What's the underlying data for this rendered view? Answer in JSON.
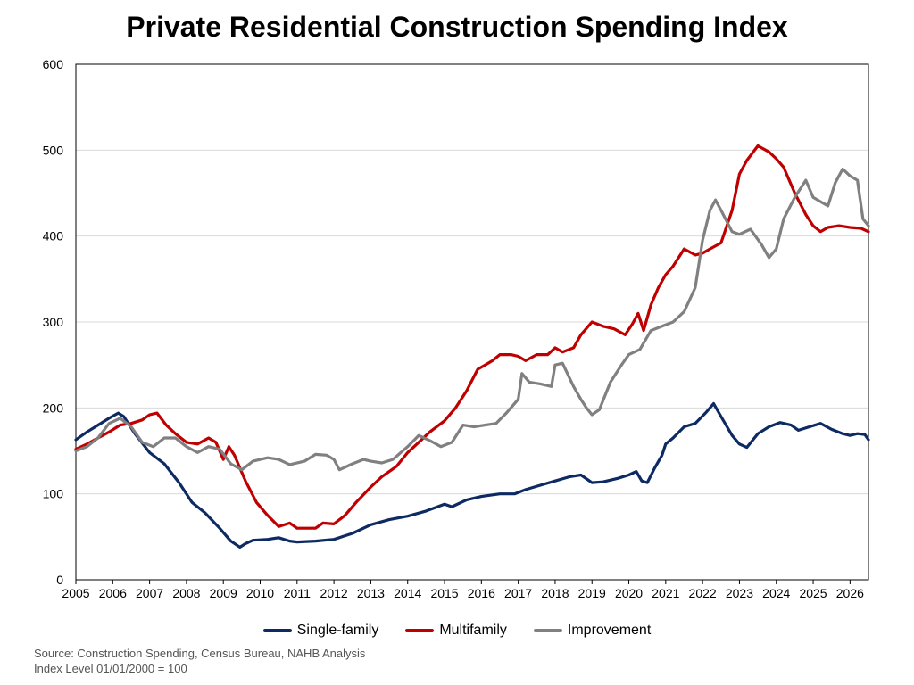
{
  "chart_data": {
    "type": "line",
    "title": "Private Residential Construction Spending Index",
    "xlabel": "",
    "ylabel": "",
    "xlim": [
      2005,
      2026.5
    ],
    "ylim": [
      0,
      600
    ],
    "yticks": [
      0,
      100,
      200,
      300,
      400,
      500,
      600
    ],
    "xticks": [
      "2005",
      "2006",
      "2007",
      "2008",
      "2009",
      "2010",
      "2011",
      "2012",
      "2013",
      "2014",
      "2015",
      "2016",
      "2017",
      "2018",
      "2019",
      "2020",
      "2021",
      "2022",
      "2023",
      "2024",
      "2025",
      "2026"
    ],
    "grid": "horizontal",
    "legend_position": "bottom",
    "series": [
      {
        "name": "Single-family",
        "color": "#0d2a63",
        "points": [
          [
            2005.0,
            163
          ],
          [
            2005.3,
            172
          ],
          [
            2005.6,
            180
          ],
          [
            2005.9,
            188
          ],
          [
            2006.15,
            194
          ],
          [
            2006.3,
            190
          ],
          [
            2006.6,
            170
          ],
          [
            2007.0,
            148
          ],
          [
            2007.4,
            135
          ],
          [
            2007.8,
            113
          ],
          [
            2008.15,
            90
          ],
          [
            2008.5,
            78
          ],
          [
            2008.9,
            60
          ],
          [
            2009.2,
            45
          ],
          [
            2009.45,
            38
          ],
          [
            2009.6,
            42
          ],
          [
            2009.8,
            46
          ],
          [
            2010.2,
            47
          ],
          [
            2010.5,
            49
          ],
          [
            2010.8,
            45
          ],
          [
            2011.0,
            44
          ],
          [
            2011.5,
            45
          ],
          [
            2012.0,
            47
          ],
          [
            2012.5,
            54
          ],
          [
            2013.0,
            64
          ],
          [
            2013.5,
            70
          ],
          [
            2014.0,
            74
          ],
          [
            2014.5,
            80
          ],
          [
            2015.0,
            88
          ],
          [
            2015.2,
            85
          ],
          [
            2015.6,
            93
          ],
          [
            2016.0,
            97
          ],
          [
            2016.5,
            100
          ],
          [
            2016.9,
            100
          ],
          [
            2017.2,
            105
          ],
          [
            2017.6,
            110
          ],
          [
            2018.0,
            115
          ],
          [
            2018.4,
            120
          ],
          [
            2018.7,
            122
          ],
          [
            2019.0,
            113
          ],
          [
            2019.3,
            114
          ],
          [
            2019.7,
            118
          ],
          [
            2020.0,
            122
          ],
          [
            2020.2,
            126
          ],
          [
            2020.35,
            115
          ],
          [
            2020.5,
            113
          ],
          [
            2020.7,
            130
          ],
          [
            2020.9,
            145
          ],
          [
            2021.0,
            158
          ],
          [
            2021.2,
            165
          ],
          [
            2021.5,
            178
          ],
          [
            2021.8,
            182
          ],
          [
            2022.1,
            195
          ],
          [
            2022.3,
            205
          ],
          [
            2022.5,
            190
          ],
          [
            2022.8,
            168
          ],
          [
            2023.0,
            158
          ],
          [
            2023.2,
            154
          ],
          [
            2023.5,
            170
          ],
          [
            2023.8,
            178
          ],
          [
            2024.1,
            183
          ],
          [
            2024.4,
            180
          ],
          [
            2024.6,
            174
          ],
          [
            2024.9,
            178
          ],
          [
            2025.2,
            182
          ],
          [
            2025.5,
            175
          ],
          [
            2025.8,
            170
          ],
          [
            2026.0,
            168
          ],
          [
            2026.2,
            170
          ],
          [
            2026.4,
            169
          ],
          [
            2026.5,
            163
          ]
        ]
      },
      {
        "name": "Multifamily",
        "color": "#c00000",
        "points": [
          [
            2005.0,
            152
          ],
          [
            2005.3,
            158
          ],
          [
            2005.6,
            165
          ],
          [
            2005.9,
            172
          ],
          [
            2006.2,
            180
          ],
          [
            2006.5,
            182
          ],
          [
            2006.8,
            186
          ],
          [
            2007.0,
            192
          ],
          [
            2007.2,
            194
          ],
          [
            2007.45,
            180
          ],
          [
            2007.7,
            170
          ],
          [
            2008.0,
            160
          ],
          [
            2008.3,
            158
          ],
          [
            2008.6,
            165
          ],
          [
            2008.8,
            160
          ],
          [
            2009.0,
            140
          ],
          [
            2009.15,
            155
          ],
          [
            2009.3,
            145
          ],
          [
            2009.6,
            115
          ],
          [
            2009.9,
            90
          ],
          [
            2010.2,
            75
          ],
          [
            2010.5,
            62
          ],
          [
            2010.8,
            66
          ],
          [
            2011.0,
            60
          ],
          [
            2011.5,
            60
          ],
          [
            2011.7,
            66
          ],
          [
            2012.0,
            65
          ],
          [
            2012.3,
            75
          ],
          [
            2012.6,
            90
          ],
          [
            2013.0,
            108
          ],
          [
            2013.3,
            120
          ],
          [
            2013.7,
            132
          ],
          [
            2014.0,
            148
          ],
          [
            2014.3,
            160
          ],
          [
            2014.6,
            172
          ],
          [
            2015.0,
            185
          ],
          [
            2015.3,
            200
          ],
          [
            2015.6,
            220
          ],
          [
            2015.9,
            245
          ],
          [
            2016.1,
            250
          ],
          [
            2016.3,
            255
          ],
          [
            2016.5,
            262
          ],
          [
            2016.8,
            262
          ],
          [
            2017.0,
            260
          ],
          [
            2017.2,
            255
          ],
          [
            2017.5,
            262
          ],
          [
            2017.8,
            262
          ],
          [
            2018.0,
            270
          ],
          [
            2018.2,
            265
          ],
          [
            2018.5,
            270
          ],
          [
            2018.7,
            285
          ],
          [
            2019.0,
            300
          ],
          [
            2019.3,
            295
          ],
          [
            2019.6,
            292
          ],
          [
            2019.9,
            285
          ],
          [
            2020.1,
            298
          ],
          [
            2020.25,
            310
          ],
          [
            2020.4,
            290
          ],
          [
            2020.6,
            320
          ],
          [
            2020.8,
            340
          ],
          [
            2021.0,
            355
          ],
          [
            2021.2,
            365
          ],
          [
            2021.5,
            385
          ],
          [
            2021.8,
            378
          ],
          [
            2022.0,
            380
          ],
          [
            2022.2,
            385
          ],
          [
            2022.5,
            392
          ],
          [
            2022.8,
            430
          ],
          [
            2023.0,
            472
          ],
          [
            2023.2,
            488
          ],
          [
            2023.5,
            505
          ],
          [
            2023.8,
            498
          ],
          [
            2024.0,
            490
          ],
          [
            2024.2,
            480
          ],
          [
            2024.5,
            450
          ],
          [
            2024.8,
            425
          ],
          [
            2025.0,
            412
          ],
          [
            2025.2,
            405
          ],
          [
            2025.4,
            410
          ],
          [
            2025.7,
            412
          ],
          [
            2026.0,
            410
          ],
          [
            2026.3,
            409
          ],
          [
            2026.5,
            405
          ]
        ]
      },
      {
        "name": "Improvement",
        "color": "#808080",
        "points": [
          [
            2005.0,
            150
          ],
          [
            2005.3,
            155
          ],
          [
            2005.6,
            165
          ],
          [
            2005.9,
            182
          ],
          [
            2006.2,
            188
          ],
          [
            2006.5,
            178
          ],
          [
            2006.8,
            160
          ],
          [
            2007.1,
            155
          ],
          [
            2007.4,
            165
          ],
          [
            2007.7,
            165
          ],
          [
            2008.0,
            155
          ],
          [
            2008.3,
            148
          ],
          [
            2008.6,
            155
          ],
          [
            2008.9,
            152
          ],
          [
            2009.2,
            135
          ],
          [
            2009.5,
            128
          ],
          [
            2009.8,
            138
          ],
          [
            2010.2,
            142
          ],
          [
            2010.5,
            140
          ],
          [
            2010.8,
            134
          ],
          [
            2011.2,
            138
          ],
          [
            2011.5,
            146
          ],
          [
            2011.8,
            145
          ],
          [
            2012.0,
            140
          ],
          [
            2012.15,
            128
          ],
          [
            2012.5,
            135
          ],
          [
            2012.8,
            140
          ],
          [
            2013.0,
            138
          ],
          [
            2013.3,
            136
          ],
          [
            2013.6,
            140
          ],
          [
            2014.0,
            155
          ],
          [
            2014.3,
            168
          ],
          [
            2014.6,
            162
          ],
          [
            2014.9,
            155
          ],
          [
            2015.2,
            160
          ],
          [
            2015.5,
            180
          ],
          [
            2015.8,
            178
          ],
          [
            2016.1,
            180
          ],
          [
            2016.4,
            182
          ],
          [
            2016.7,
            195
          ],
          [
            2017.0,
            210
          ],
          [
            2017.1,
            240
          ],
          [
            2017.3,
            230
          ],
          [
            2017.6,
            228
          ],
          [
            2017.9,
            225
          ],
          [
            2018.0,
            250
          ],
          [
            2018.2,
            252
          ],
          [
            2018.5,
            225
          ],
          [
            2018.7,
            210
          ],
          [
            2018.85,
            200
          ],
          [
            2019.0,
            192
          ],
          [
            2019.2,
            198
          ],
          [
            2019.5,
            230
          ],
          [
            2019.8,
            250
          ],
          [
            2020.0,
            262
          ],
          [
            2020.3,
            268
          ],
          [
            2020.6,
            290
          ],
          [
            2020.9,
            295
          ],
          [
            2021.2,
            300
          ],
          [
            2021.5,
            312
          ],
          [
            2021.8,
            340
          ],
          [
            2022.0,
            395
          ],
          [
            2022.2,
            430
          ],
          [
            2022.35,
            442
          ],
          [
            2022.5,
            430
          ],
          [
            2022.8,
            405
          ],
          [
            2023.0,
            402
          ],
          [
            2023.3,
            408
          ],
          [
            2023.6,
            390
          ],
          [
            2023.8,
            375
          ],
          [
            2024.0,
            385
          ],
          [
            2024.2,
            420
          ],
          [
            2024.5,
            445
          ],
          [
            2024.8,
            465
          ],
          [
            2025.0,
            445
          ],
          [
            2025.2,
            440
          ],
          [
            2025.4,
            435
          ],
          [
            2025.6,
            462
          ],
          [
            2025.8,
            478
          ],
          [
            2026.0,
            470
          ],
          [
            2026.2,
            465
          ],
          [
            2026.35,
            420
          ],
          [
            2026.5,
            412
          ]
        ]
      }
    ]
  },
  "legend": {
    "items": [
      {
        "label": "Single-family",
        "color": "#0d2a63"
      },
      {
        "label": "Multifamily",
        "color": "#c00000"
      },
      {
        "label": "Improvement",
        "color": "#808080"
      }
    ]
  },
  "footer": {
    "source": "Source: Construction Spending, Census Bureau, NAHB Analysis",
    "note": "Index Level 01/01/2000 = 100"
  }
}
